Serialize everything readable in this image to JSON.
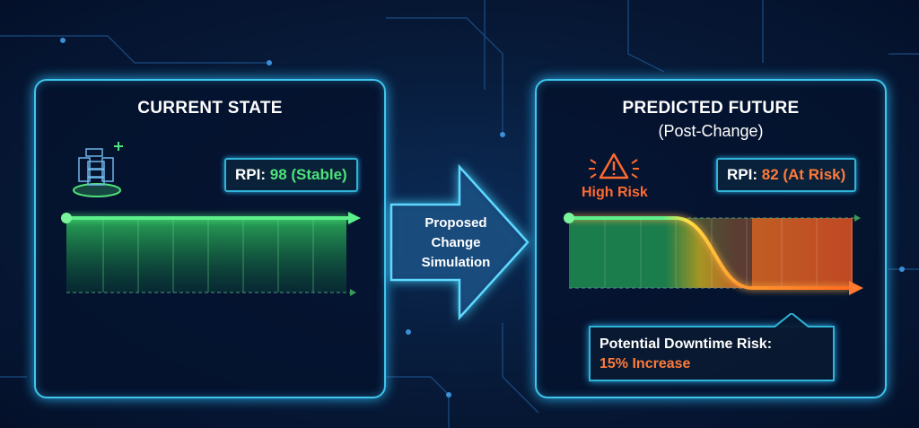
{
  "current": {
    "title": "CURRENT STATE",
    "rpi_label": "RPI:",
    "rpi_value": "98 (Stable)",
    "icon": "server-icon"
  },
  "transition": {
    "lines": [
      "Proposed",
      "Change",
      "Simulation"
    ]
  },
  "future": {
    "title": "PREDICTED FUTURE",
    "subtitle": "(Post-Change)",
    "risk_label": "High Risk",
    "rpi_label": "RPI:",
    "rpi_value": "82 (At Risk)",
    "callout_label": "Potential Downtime Risk:",
    "callout_value": "15% Increase",
    "icon": "warning-icon"
  },
  "colors": {
    "frame": "#3fc6ee",
    "stable": "#4ee27a",
    "risk": "#ff7a3a",
    "warning": "#ffcc33"
  }
}
